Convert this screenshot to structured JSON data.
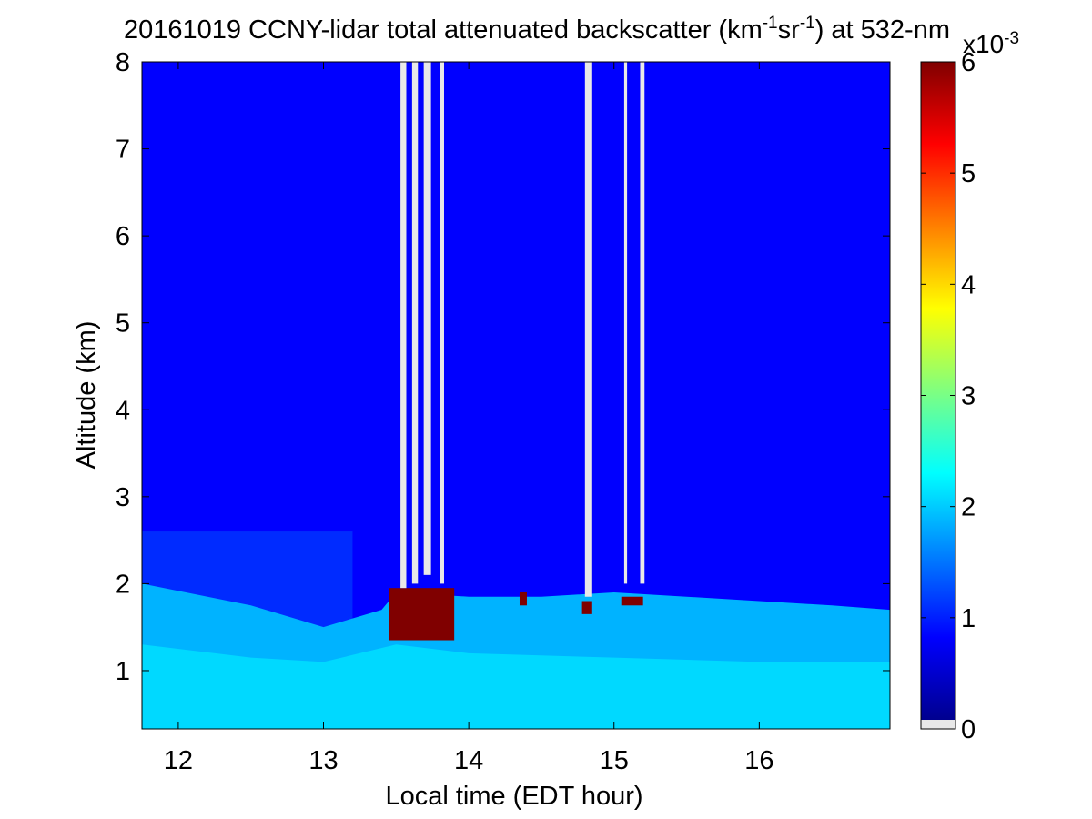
{
  "chart_data": {
    "type": "heatmap",
    "title": {
      "prefix": "20161019 CCNY-lidar total attenuated backscatter (km",
      "sup1": "-1",
      "mid": "sr",
      "sup2": "-1",
      "suffix": ") at 532-nm"
    },
    "xlabel": "Local time (EDT hour)",
    "ylabel": "Altitude (km)",
    "xlim": [
      11.75,
      16.9
    ],
    "ylim": [
      0.33,
      8
    ],
    "x_ticks": [
      12,
      13,
      14,
      15,
      16
    ],
    "y_ticks": [
      1,
      2,
      3,
      4,
      5,
      6,
      7,
      8
    ],
    "colorbar": {
      "ticks": [
        0,
        1,
        2,
        3,
        4,
        5,
        6
      ],
      "range": [
        0,
        6
      ],
      "multiplier": {
        "base": "x10",
        "exp": "-3"
      },
      "colormap": "jet",
      "below_range_color": "#e8e8e8"
    },
    "background_value": 0.75,
    "boundary_layer": {
      "top_km": [
        [
          11.75,
          2.0
        ],
        [
          12.5,
          1.75
        ],
        [
          13.0,
          1.5
        ],
        [
          13.4,
          1.7
        ],
        [
          13.5,
          1.9
        ],
        [
          14.0,
          1.85
        ],
        [
          14.5,
          1.85
        ],
        [
          15.0,
          1.9
        ],
        [
          15.5,
          1.85
        ],
        [
          16.0,
          1.8
        ],
        [
          16.5,
          1.75
        ],
        [
          16.9,
          1.7
        ]
      ],
      "value": 1.8
    },
    "residual_layer": {
      "top_km": 2.6,
      "until_hour": 13.2,
      "value": 1.05
    },
    "surface_layer": {
      "value": 2.1
    },
    "cloud_base_patches": [
      {
        "x": [
          13.45,
          13.9
        ],
        "alt": [
          1.35,
          1.95
        ],
        "value": 6
      },
      {
        "x": [
          14.35,
          14.4
        ],
        "alt": [
          1.75,
          1.9
        ],
        "value": 6
      },
      {
        "x": [
          14.78,
          14.85
        ],
        "alt": [
          1.65,
          1.8
        ],
        "value": 6
      },
      {
        "x": [
          15.05,
          15.2
        ],
        "alt": [
          1.75,
          1.85
        ],
        "value": 6
      }
    ],
    "signal_blocked_columns": [
      {
        "x": [
          13.53,
          13.57
        ],
        "alt_bottom": 1.95
      },
      {
        "x": [
          13.61,
          13.65
        ],
        "alt_bottom": 2.0
      },
      {
        "x": [
          13.69,
          13.74
        ],
        "alt_bottom": 2.1
      },
      {
        "x": [
          13.8,
          13.83
        ],
        "alt_bottom": 2.0
      },
      {
        "x": [
          14.8,
          14.85
        ],
        "alt_bottom": 1.85
      },
      {
        "x": [
          15.07,
          15.09
        ],
        "alt_bottom": 2.0
      },
      {
        "x": [
          15.18,
          15.21
        ],
        "alt_bottom": 2.0
      }
    ]
  }
}
